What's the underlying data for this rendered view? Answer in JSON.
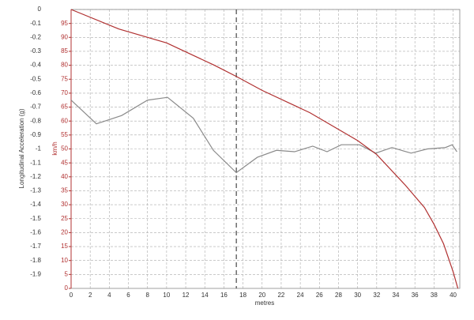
{
  "chart_data": {
    "type": "line",
    "ylabel": "Longitudinal Acceleration (g)",
    "y2label": "km/h",
    "xlabel": "metres",
    "xlim": [
      0,
      40.7
    ],
    "xticks": [
      0,
      2,
      4,
      6,
      8,
      10,
      12,
      14,
      16,
      18,
      20,
      22,
      24,
      26,
      28,
      30,
      32,
      34,
      36,
      38,
      40
    ],
    "ylim": [
      -2,
      0
    ],
    "yticks": [
      0,
      -0.1,
      -0.2,
      -0.3,
      -0.4,
      -0.5,
      -0.6,
      -0.7,
      -0.8,
      -0.9,
      -1,
      -1.1,
      -1.2,
      -1.3,
      -1.4,
      -1.5,
      -1.6,
      -1.7,
      -1.8,
      -1.9
    ],
    "y2lim": [
      0,
      100
    ],
    "y2ticks": [
      0,
      5,
      10,
      15,
      20,
      25,
      30,
      35,
      40,
      45,
      50,
      55,
      60,
      65,
      70,
      75,
      80,
      85,
      90,
      95
    ],
    "grid": true,
    "cursor_x": 17.3,
    "series": [
      {
        "color": "#8a8a8a",
        "x": [
          0,
          2.65,
          5.3,
          8.0,
          10.1,
          12.8,
          14.9,
          17.3,
          19.5,
          21.5,
          23.4,
          25.3,
          26.8,
          28.3,
          30.2,
          31.9,
          33.6,
          35.6,
          37.3,
          39.2,
          39.9,
          40.4
        ],
        "values": [
          -0.65,
          -0.82,
          -0.76,
          -0.65,
          -0.63,
          -0.78,
          -1.01,
          -1.17,
          -1.06,
          -1.01,
          -1.02,
          -0.98,
          -1.02,
          -0.97,
          -0.97,
          -1.03,
          -0.99,
          -1.03,
          -1.0,
          -0.99,
          -0.97,
          -1.02
        ]
      },
      {
        "color": "#b03030",
        "axis": "y2",
        "x": [
          0,
          5,
          10,
          15,
          17.3,
          20,
          25,
          30,
          32,
          35,
          37,
          38,
          39,
          40,
          40.5
        ],
        "values": [
          100,
          93,
          88,
          80,
          76,
          71,
          63,
          53,
          48,
          37,
          29,
          23,
          16,
          6,
          0
        ]
      }
    ]
  }
}
